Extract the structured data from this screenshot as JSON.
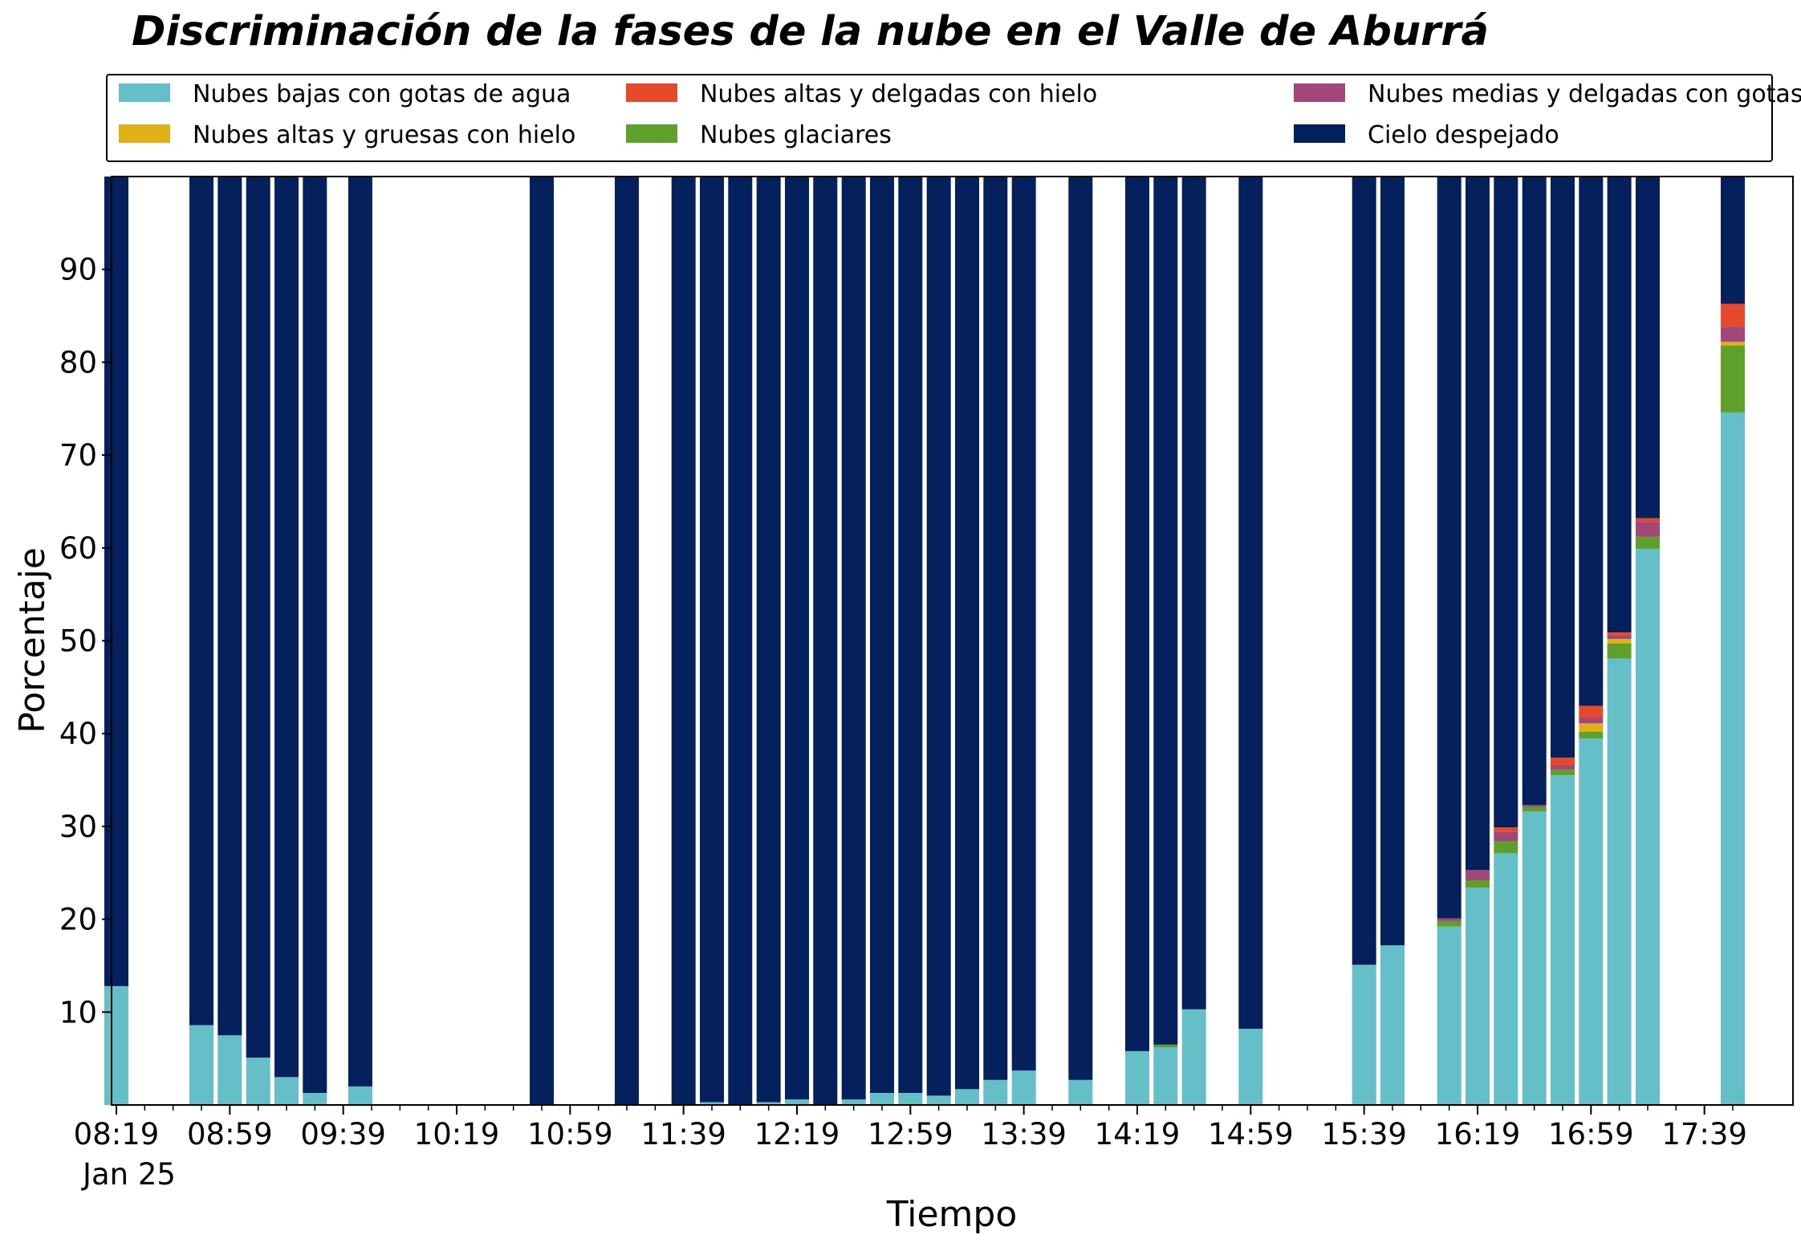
{
  "chart_data": {
    "type": "bar",
    "stacked": true,
    "title": "Discriminación de la fases de la nube en el Valle de Aburrá",
    "xlabel": "Tiempo",
    "ylabel": "Porcentaje",
    "ylim": [
      0,
      100
    ],
    "yticks": [
      10,
      20,
      30,
      40,
      50,
      60,
      70,
      80,
      90
    ],
    "x_start": "08:19",
    "x_end": "17:49",
    "x_tick_labels": [
      "08:19",
      "08:59",
      "09:39",
      "10:19",
      "10:59",
      "11:39",
      "12:19",
      "12:59",
      "13:39",
      "14:19",
      "14:59",
      "15:39",
      "16:19",
      "16:59",
      "17:39"
    ],
    "x_date_label": "Jan 25",
    "legend_position": "top",
    "grid": false,
    "categories": [
      "08:19",
      "08:49",
      "08:59",
      "09:09",
      "09:19",
      "09:29",
      "09:45",
      "10:49",
      "11:19",
      "11:39",
      "11:49",
      "11:59",
      "12:09",
      "12:19",
      "12:29",
      "12:39",
      "12:49",
      "12:59",
      "13:09",
      "13:19",
      "13:29",
      "13:39",
      "13:59",
      "14:19",
      "14:29",
      "14:39",
      "14:59",
      "15:39",
      "15:49",
      "16:09",
      "16:19",
      "16:29",
      "16:39",
      "16:49",
      "16:59",
      "17:09",
      "17:19",
      "17:49"
    ],
    "series": [
      {
        "name": "Nubes bajas con gotas de agua",
        "color": "#65bfc9",
        "values": [
          12.8,
          8.6,
          7.5,
          5.1,
          3.0,
          1.3,
          2.0,
          0,
          0,
          0,
          0.3,
          0,
          0.3,
          0.6,
          0,
          0.6,
          1.3,
          1.3,
          1.0,
          1.7,
          2.7,
          3.7,
          2.7,
          5.8,
          6.2,
          10.3,
          8.2,
          15.1,
          17.2,
          19.2,
          23.4,
          27.1,
          31.6,
          35.5,
          39.5,
          48.1,
          59.9,
          74.6
        ]
      },
      {
        "name": "Nubes glaciares",
        "color": "#5fa02b",
        "values": [
          0,
          0,
          0,
          0,
          0,
          0,
          0,
          0,
          0,
          0,
          0,
          0,
          0,
          0,
          0,
          0,
          0,
          0,
          0,
          0,
          0,
          0,
          0,
          0,
          0.3,
          0,
          0,
          0,
          0,
          0.6,
          0.8,
          1.3,
          0.5,
          0.6,
          0.7,
          1.6,
          1.3,
          7.2
        ]
      },
      {
        "name": "Nubes altas y gruesas con hielo",
        "color": "#e0b117",
        "values": [
          0,
          0,
          0,
          0,
          0,
          0,
          0,
          0,
          0,
          0,
          0,
          0,
          0,
          0,
          0,
          0,
          0,
          0,
          0,
          0,
          0,
          0,
          0,
          0,
          0,
          0,
          0,
          0,
          0,
          0,
          0,
          0,
          0,
          0,
          0.9,
          0.5,
          0,
          0.4
        ]
      },
      {
        "name": "Nubes medias y delgadas con gotas de agua",
        "color": "#a3477a",
        "values": [
          0,
          0,
          0,
          0,
          0,
          0,
          0,
          0,
          0,
          0,
          0,
          0,
          0,
          0,
          0,
          0,
          0,
          0,
          0,
          0,
          0,
          0,
          0,
          0,
          0,
          0,
          0,
          0,
          0,
          0.3,
          1.1,
          1.0,
          0.2,
          0.5,
          0.6,
          0.4,
          1.6,
          1.6
        ]
      },
      {
        "name": "Nubes altas y delgadas con hielo",
        "color": "#e6492a",
        "values": [
          0,
          0,
          0,
          0,
          0,
          0,
          0,
          0,
          0,
          0,
          0,
          0,
          0,
          0,
          0,
          0,
          0,
          0,
          0,
          0,
          0,
          0,
          0,
          0,
          0,
          0,
          0,
          0,
          0,
          0,
          0,
          0.5,
          0,
          0.8,
          1.3,
          0.3,
          0.4,
          2.5
        ]
      },
      {
        "name": "Cielo despejado",
        "color": "#04215e",
        "values": [
          87.2,
          91.4,
          92.5,
          94.9,
          97.0,
          98.7,
          98.0,
          100,
          100,
          100,
          99.7,
          100,
          99.7,
          99.4,
          100,
          99.4,
          98.7,
          98.7,
          99.0,
          98.3,
          97.3,
          96.3,
          97.3,
          94.2,
          93.5,
          89.7,
          91.8,
          84.9,
          82.8,
          79.9,
          74.7,
          70.1,
          67.7,
          62.6,
          57.0,
          49.1,
          36.8,
          13.7
        ]
      }
    ]
  }
}
